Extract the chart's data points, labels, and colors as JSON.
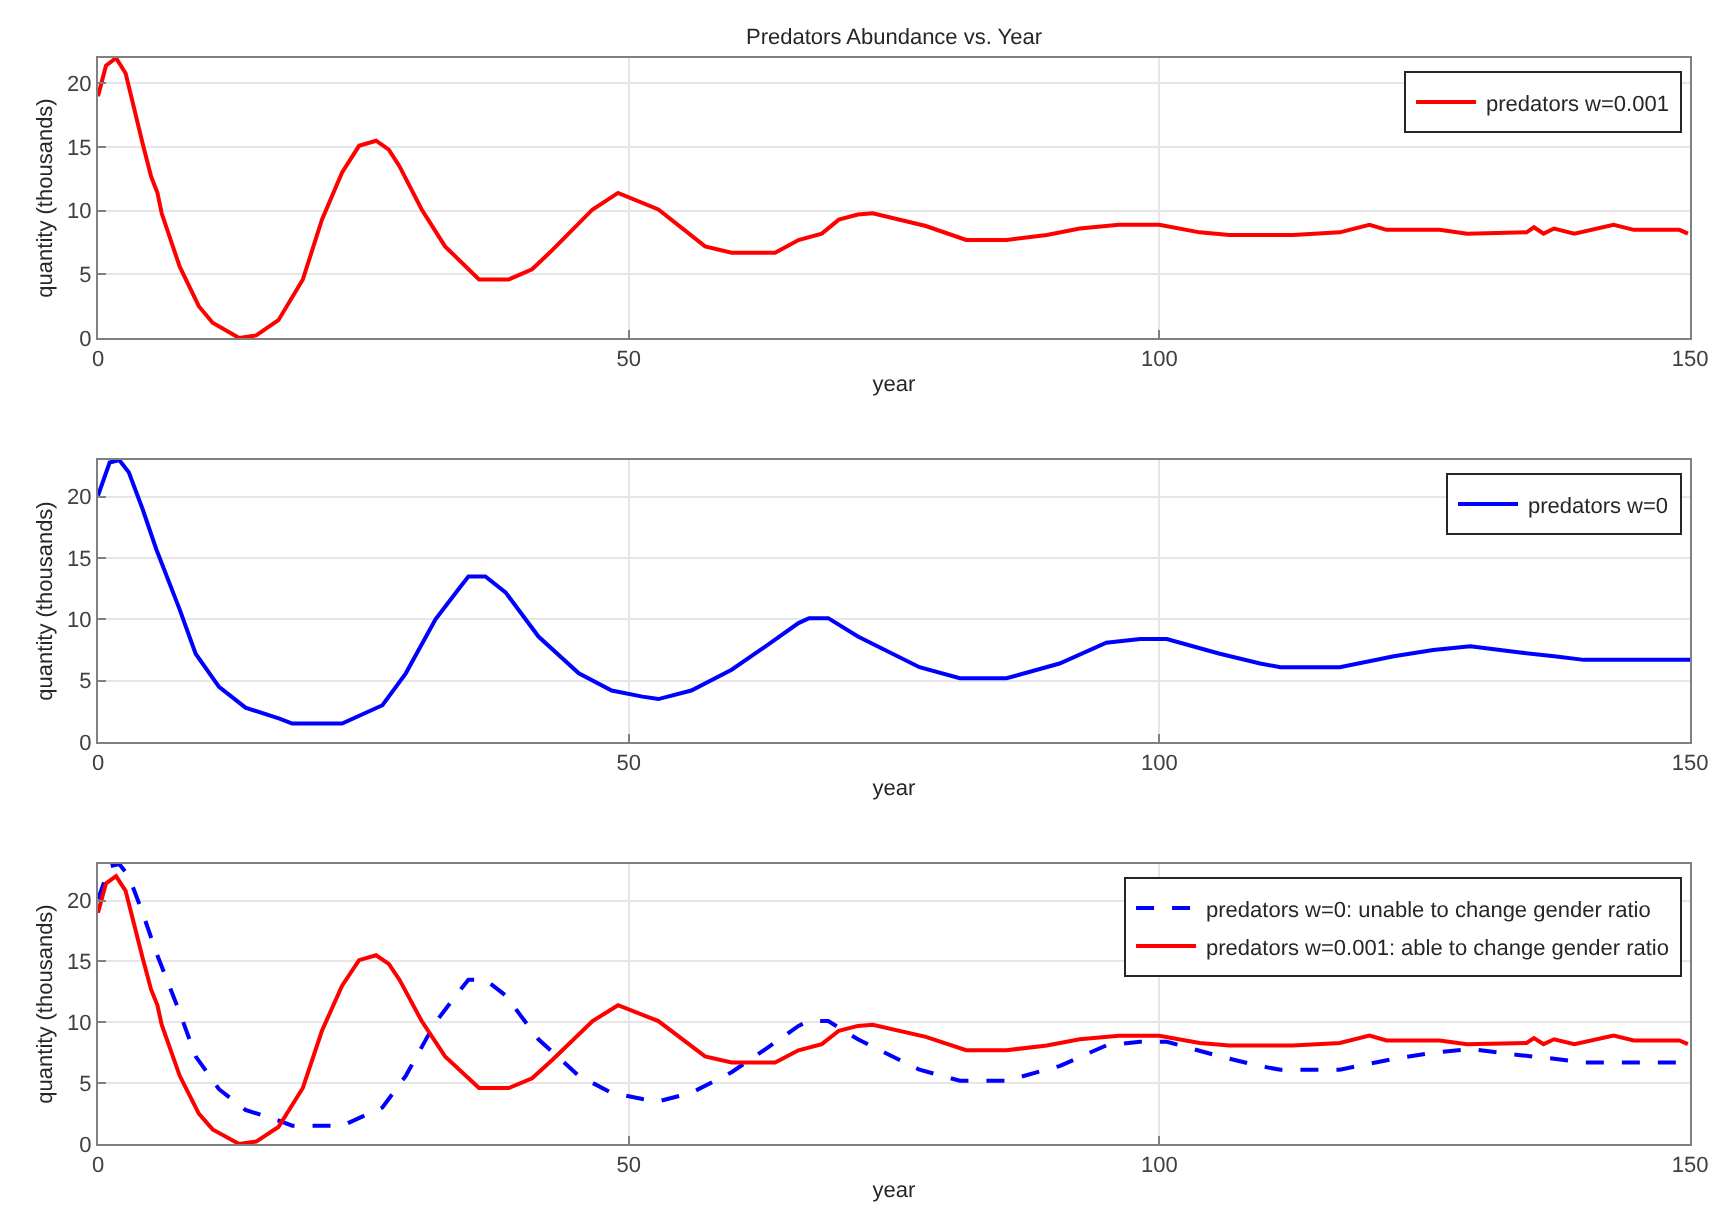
{
  "chart_data": [
    {
      "type": "line",
      "title": "Predators Abundance vs. Year",
      "xlabel": "year",
      "ylabel": "quantity (thousands)",
      "xlim": [
        0,
        150
      ],
      "xticks": [
        0,
        50,
        100,
        150
      ],
      "ylim": [
        0,
        22
      ],
      "yticks": [
        0,
        5,
        10,
        15,
        20
      ],
      "grid": true,
      "legend": "top right",
      "series": [
        {
          "name": "predators w=0.001",
          "color": "#ff0000",
          "line_style": "solid",
          "x": [
            0,
            0.75,
            1.7,
            2.6,
            4.2,
            5,
            5.6,
            6,
            7.7,
            9.5,
            10.8,
            13.3,
            14.9,
            17,
            19.3,
            21.1,
            23,
            24.6,
            26.2,
            27.4,
            28.4,
            30.5,
            32.7,
            35.9,
            38.7,
            40.9,
            42.8,
            46.6,
            49,
            52.8,
            57.2,
            59.7,
            63.8,
            66,
            68.2,
            69.8,
            71.6,
            73,
            78,
            81.8,
            85.6,
            89.4,
            92.5,
            96.2,
            100,
            103.8,
            106.6,
            112.6,
            117,
            119.8,
            121.4,
            126.4,
            129,
            134.6,
            135.3,
            136.2,
            137.2,
            139.1,
            142.8,
            144.7,
            149,
            149.8
          ],
          "values": [
            19.0,
            21.4,
            22.0,
            20.8,
            15.3,
            12.7,
            11.4,
            9.8,
            5.6,
            2.5,
            1.2,
            0,
            0.2,
            1.4,
            4.6,
            9.3,
            13,
            15.1,
            15.5,
            14.8,
            13.5,
            10.1,
            7.2,
            4.6,
            4.6,
            5.4,
            6.9,
            10.1,
            11.4,
            10.1,
            7.2,
            6.7,
            6.7,
            7.7,
            8.2,
            9.3,
            9.7,
            9.8,
            8.8,
            7.7,
            7.7,
            8.1,
            8.6,
            8.9,
            8.9,
            8.3,
            8.1,
            8.1,
            8.3,
            8.9,
            8.5,
            8.5,
            8.2,
            8.3,
            8.7,
            8.2,
            8.6,
            8.2,
            8.9,
            8.5,
            8.5,
            8.2
          ]
        }
      ]
    },
    {
      "type": "line",
      "xlabel": "year",
      "ylabel": "quantity (thousands)",
      "xlim": [
        0,
        150
      ],
      "xticks": [
        0,
        50,
        100,
        150
      ],
      "ylim": [
        0,
        23
      ],
      "yticks": [
        0,
        5,
        10,
        15,
        20
      ],
      "grid": true,
      "legend": "top right",
      "series": [
        {
          "name": "predators w=0",
          "color": "#0000ff",
          "line_style": "solid",
          "x": [
            0,
            1.1,
            2,
            2.9,
            4.2,
            5.5,
            7.7,
            9.2,
            11.4,
            13.9,
            17.1,
            18.3,
            23,
            26.8,
            29,
            31.8,
            34,
            34.9,
            36.5,
            38.4,
            41.5,
            45.3,
            48.4,
            51.3,
            52.8,
            55.9,
            59.7,
            62.9,
            66,
            67,
            68.8,
            71.6,
            77.4,
            81.2,
            85.6,
            90.6,
            95,
            98.2,
            100.7,
            105.7,
            109.5,
            111.4,
            117,
            122.1,
            125.8,
            129.3,
            134,
            137.2,
            140,
            150
          ],
          "values": [
            20.1,
            22.8,
            23.0,
            22.0,
            19.0,
            15.7,
            10.8,
            7.2,
            4.5,
            2.8,
            1.9,
            1.5,
            1.5,
            3.0,
            5.6,
            10.0,
            12.5,
            13.5,
            13.5,
            12.2,
            8.6,
            5.6,
            4.2,
            3.7,
            3.5,
            4.2,
            5.9,
            7.8,
            9.7,
            10.1,
            10.1,
            8.6,
            6.1,
            5.2,
            5.2,
            6.4,
            8.1,
            8.4,
            8.4,
            7.2,
            6.4,
            6.1,
            6.1,
            7.0,
            7.5,
            7.8,
            7.3,
            7.0,
            6.7,
            6.7
          ]
        }
      ]
    },
    {
      "type": "line",
      "xlabel": "year",
      "ylabel": "quantity (thousands)",
      "xlim": [
        0,
        150
      ],
      "xticks": [
        0,
        50,
        100,
        150
      ],
      "ylim": [
        0,
        23
      ],
      "yticks": [
        0,
        5,
        10,
        15,
        20
      ],
      "grid": true,
      "legend": "top right",
      "series": [
        {
          "name": "predators w=0: unable to change gender ratio",
          "color": "#0000ff",
          "line_style": "dashed",
          "x": [
            0,
            1.1,
            2,
            2.9,
            4.2,
            5.5,
            7.7,
            9.2,
            11.4,
            13.9,
            17.1,
            18.3,
            23,
            26.8,
            29,
            31.8,
            34,
            34.9,
            36.5,
            38.4,
            41.5,
            45.3,
            48.4,
            51.3,
            52.8,
            55.9,
            59.7,
            62.9,
            66,
            67,
            68.8,
            71.6,
            77.4,
            81.2,
            85.6,
            90.6,
            95,
            98.2,
            100.7,
            105.7,
            109.5,
            111.4,
            117,
            122.1,
            125.8,
            129.3,
            134,
            137.2,
            140,
            150
          ],
          "values": [
            20.1,
            22.8,
            23.0,
            22.0,
            19.0,
            15.7,
            10.8,
            7.2,
            4.5,
            2.8,
            1.9,
            1.5,
            1.5,
            3.0,
            5.6,
            10.0,
            12.5,
            13.5,
            13.5,
            12.2,
            8.6,
            5.6,
            4.2,
            3.7,
            3.5,
            4.2,
            5.9,
            7.8,
            9.7,
            10.1,
            10.1,
            8.6,
            6.1,
            5.2,
            5.2,
            6.4,
            8.1,
            8.4,
            8.4,
            7.2,
            6.4,
            6.1,
            6.1,
            7.0,
            7.5,
            7.8,
            7.3,
            7.0,
            6.7,
            6.7
          ]
        },
        {
          "name": "predators w=0.001: able to change gender ratio",
          "color": "#ff0000",
          "line_style": "solid",
          "x": [
            0,
            0.75,
            1.7,
            2.6,
            4.2,
            5,
            5.6,
            6,
            7.7,
            9.5,
            10.8,
            13.3,
            14.9,
            17,
            19.3,
            21.1,
            23,
            24.6,
            26.2,
            27.4,
            28.4,
            30.5,
            32.7,
            35.9,
            38.7,
            40.9,
            42.8,
            46.6,
            49,
            52.8,
            57.2,
            59.7,
            63.8,
            66,
            68.2,
            69.8,
            71.6,
            73,
            78,
            81.8,
            85.6,
            89.4,
            92.5,
            96.2,
            100,
            103.8,
            106.6,
            112.6,
            117,
            119.8,
            121.4,
            126.4,
            129,
            134.6,
            135.3,
            136.2,
            137.2,
            139.1,
            142.8,
            144.7,
            149,
            149.8
          ],
          "values": [
            19.0,
            21.4,
            22.0,
            20.8,
            15.3,
            12.7,
            11.4,
            9.8,
            5.6,
            2.5,
            1.2,
            0,
            0.2,
            1.4,
            4.6,
            9.3,
            13,
            15.1,
            15.5,
            14.8,
            13.5,
            10.1,
            7.2,
            4.6,
            4.6,
            5.4,
            6.9,
            10.1,
            11.4,
            10.1,
            7.2,
            6.7,
            6.7,
            7.7,
            8.2,
            9.3,
            9.7,
            9.8,
            8.8,
            7.7,
            7.7,
            8.1,
            8.6,
            8.9,
            8.9,
            8.3,
            8.1,
            8.1,
            8.3,
            8.9,
            8.5,
            8.5,
            8.2,
            8.3,
            8.7,
            8.2,
            8.6,
            8.2,
            8.9,
            8.5,
            8.5,
            8.2
          ]
        }
      ]
    }
  ]
}
